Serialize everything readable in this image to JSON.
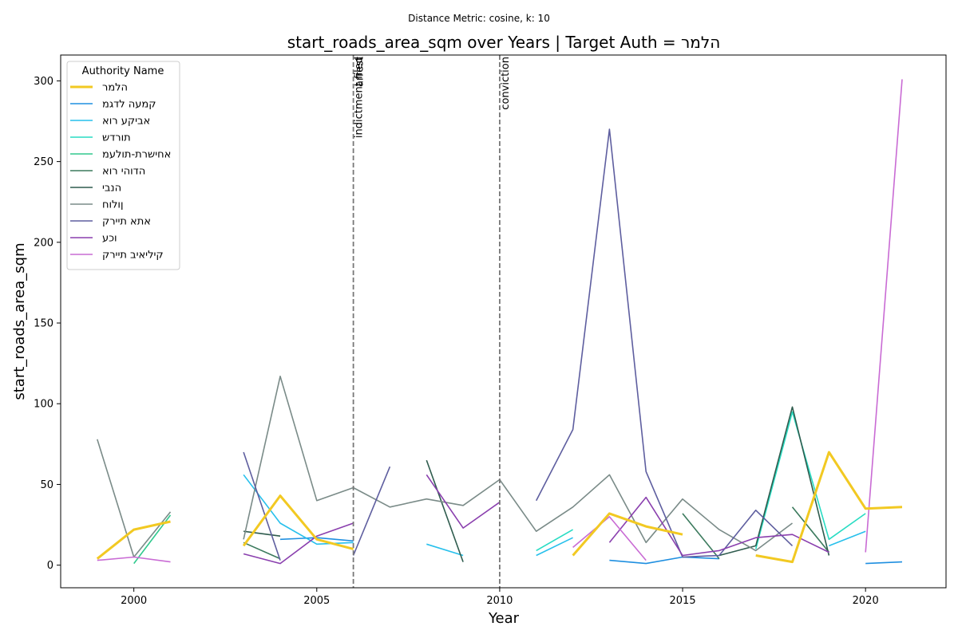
{
  "chart_data": {
    "type": "line",
    "suptitle": "Distance Metric: cosine, k: 10",
    "title": "start_roads_area_sqm over Years | Target Auth = הלמר",
    "xlabel": "Year",
    "ylabel": "start_roads_area_sqm",
    "xlim": [
      1998,
      2022.2
    ],
    "ylim": [
      -14,
      316
    ],
    "xticks": [
      2000,
      2005,
      2010,
      2015,
      2020
    ],
    "yticks": [
      0,
      50,
      100,
      150,
      200,
      250,
      300
    ],
    "grid": false,
    "legend": {
      "title": "Authority Name",
      "placement": "top-left"
    },
    "vlines": [
      {
        "x": 2006,
        "labels": [
          "indictment filed",
          "arrest"
        ]
      },
      {
        "x": 2010,
        "labels": [
          "conviction"
        ]
      }
    ],
    "series": [
      {
        "name": "הלמר",
        "color": "#f2c922",
        "width": 3,
        "points": [
          [
            1999,
            4
          ],
          [
            2000,
            22
          ],
          [
            2001,
            27
          ],
          null,
          [
            2003,
            12
          ],
          [
            2004,
            43
          ],
          [
            2005,
            16
          ],
          [
            2006,
            10
          ],
          null,
          [
            2012,
            6
          ],
          [
            2013,
            32
          ],
          [
            2014,
            24
          ],
          [
            2015,
            19
          ],
          null,
          [
            2017,
            6
          ],
          [
            2018,
            2
          ],
          [
            2019,
            70
          ],
          [
            2020,
            35
          ],
          [
            2021,
            36
          ]
        ]
      },
      {
        "name": "קמעה לדגמ",
        "color": "#1f8fe0",
        "width": 1.6,
        "points": [
          [
            2004,
            16
          ],
          [
            2005,
            17
          ],
          [
            2006,
            15
          ],
          null,
          [
            2013,
            3
          ],
          [
            2014,
            1
          ],
          [
            2015,
            5
          ],
          [
            2016,
            4
          ],
          null,
          [
            2020,
            1
          ],
          [
            2021,
            2
          ]
        ]
      },
      {
        "name": "אביקע רוא",
        "color": "#27c0ec",
        "width": 1.6,
        "points": [
          [
            2003,
            56
          ],
          [
            2004,
            26
          ],
          [
            2005,
            13
          ],
          [
            2006,
            14
          ],
          null,
          [
            2008,
            13
          ],
          [
            2009,
            6
          ],
          null,
          [
            2011,
            6
          ],
          [
            2012,
            17
          ],
          null,
          [
            2019,
            12
          ],
          [
            2020,
            21
          ]
        ]
      },
      {
        "name": "תורדש",
        "color": "#28dcc3",
        "width": 1.6,
        "points": [
          [
            2011,
            9
          ],
          [
            2012,
            22
          ],
          null,
          [
            2017,
            10
          ],
          [
            2018,
            95
          ],
          [
            2019,
            16
          ],
          [
            2020,
            32
          ]
        ]
      },
      {
        "name": "אחישרת-תולעמ",
        "color": "#30c98e",
        "width": 1.6,
        "points": [
          [
            2000,
            1
          ],
          [
            2001,
            31
          ]
        ]
      },
      {
        "name": "הדוהי רוא",
        "color": "#3b7a5d",
        "width": 1.6,
        "points": [
          [
            2003,
            14
          ],
          [
            2004,
            4
          ],
          null,
          [
            2015,
            32
          ],
          [
            2016,
            4
          ],
          null,
          [
            2018,
            36
          ],
          [
            2019,
            8
          ]
        ]
      },
      {
        "name": "הנבי",
        "color": "#2f5c4e",
        "width": 1.6,
        "points": [
          [
            2003,
            21
          ],
          [
            2004,
            18
          ],
          null,
          [
            2008,
            65
          ],
          [
            2009,
            2
          ],
          null,
          [
            2016,
            6
          ],
          [
            2017,
            12
          ],
          [
            2018,
            98
          ],
          [
            2019,
            6
          ]
        ]
      },
      {
        "name": "ןולוח",
        "color": "#7a8b88",
        "width": 1.6,
        "points": [
          [
            1999,
            78
          ],
          [
            2000,
            5
          ],
          [
            2001,
            33
          ],
          null,
          [
            2003,
            16
          ],
          [
            2004,
            117
          ],
          [
            2005,
            40
          ],
          [
            2006,
            48
          ],
          [
            2007,
            36
          ],
          [
            2008,
            41
          ],
          [
            2009,
            37
          ],
          [
            2010,
            53
          ],
          [
            2011,
            21
          ],
          [
            2012,
            36
          ],
          [
            2013,
            56
          ],
          [
            2014,
            14
          ],
          [
            2015,
            41
          ],
          [
            2016,
            22
          ],
          [
            2017,
            9
          ],
          [
            2018,
            26
          ]
        ]
      },
      {
        "name": "אתא תיירק",
        "color": "#5e5e9f",
        "width": 1.6,
        "points": [
          [
            2003,
            70
          ],
          [
            2004,
            3
          ],
          null,
          [
            2006,
            6
          ],
          [
            2007,
            61
          ],
          null,
          [
            2011,
            40
          ],
          [
            2012,
            84
          ],
          [
            2013,
            270
          ],
          [
            2014,
            58
          ],
          [
            2015,
            5
          ],
          [
            2016,
            6
          ],
          [
            2017,
            34
          ],
          [
            2018,
            12
          ]
        ]
      },
      {
        "name": "וכע",
        "color": "#8a3fae",
        "width": 1.6,
        "points": [
          [
            2003,
            7
          ],
          [
            2004,
            1
          ],
          [
            2005,
            18
          ],
          [
            2006,
            26
          ],
          null,
          [
            2008,
            56
          ],
          [
            2009,
            23
          ],
          [
            2010,
            39
          ],
          null,
          [
            2013,
            14
          ],
          [
            2014,
            42
          ],
          [
            2015,
            6
          ],
          [
            2016,
            9
          ],
          [
            2017,
            17
          ],
          [
            2018,
            19
          ],
          [
            2019,
            8
          ]
        ]
      },
      {
        "name": "קיליאיב תיירק",
        "color": "#c96bd4",
        "width": 1.6,
        "points": [
          [
            1999,
            3
          ],
          [
            2000,
            5
          ],
          [
            2001,
            2
          ],
          null,
          [
            2012,
            11
          ],
          [
            2013,
            30
          ],
          [
            2014,
            3
          ],
          null,
          [
            2020,
            8
          ],
          [
            2021,
            301
          ]
        ]
      }
    ]
  }
}
